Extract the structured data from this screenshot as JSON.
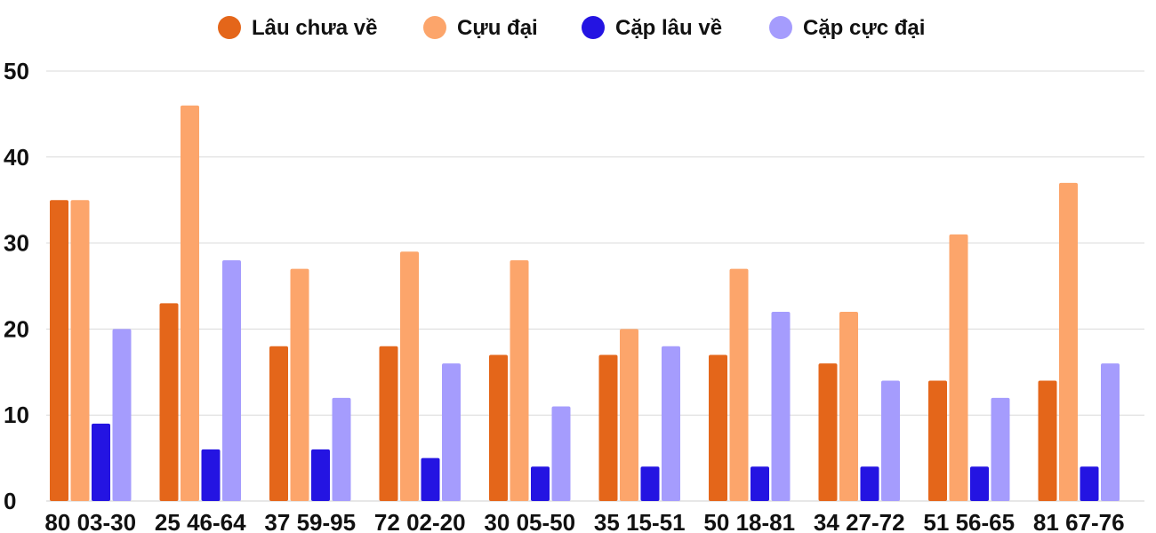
{
  "chart_data": {
    "type": "bar",
    "categories": [
      "80 03-30",
      "25 46-64",
      "37 59-95",
      "72 02-20",
      "30 05-50",
      "35 15-51",
      "50 18-81",
      "34 27-72",
      "51 56-65",
      "81 67-76"
    ],
    "series": [
      {
        "name": "Lâu chưa về",
        "color": "#E4661A",
        "values": [
          35,
          23,
          18,
          18,
          17,
          17,
          17,
          16,
          14,
          14
        ]
      },
      {
        "name": "Cựu đại",
        "color": "#FCA56B",
        "values": [
          35,
          46,
          27,
          29,
          28,
          20,
          27,
          22,
          31,
          37
        ]
      },
      {
        "name": "Cặp lâu về",
        "color": "#2414E2",
        "values": [
          9,
          6,
          6,
          5,
          4,
          4,
          4,
          4,
          4,
          4
        ]
      },
      {
        "name": "Cặp cực đại",
        "color": "#A59CFD",
        "values": [
          20,
          28,
          12,
          16,
          11,
          18,
          22,
          14,
          12,
          16
        ]
      }
    ],
    "yticks": [
      "0",
      "10",
      "20",
      "30",
      "40",
      "50"
    ],
    "ylim": [
      0,
      50
    ],
    "grid": true,
    "legend_position": "top-center"
  }
}
